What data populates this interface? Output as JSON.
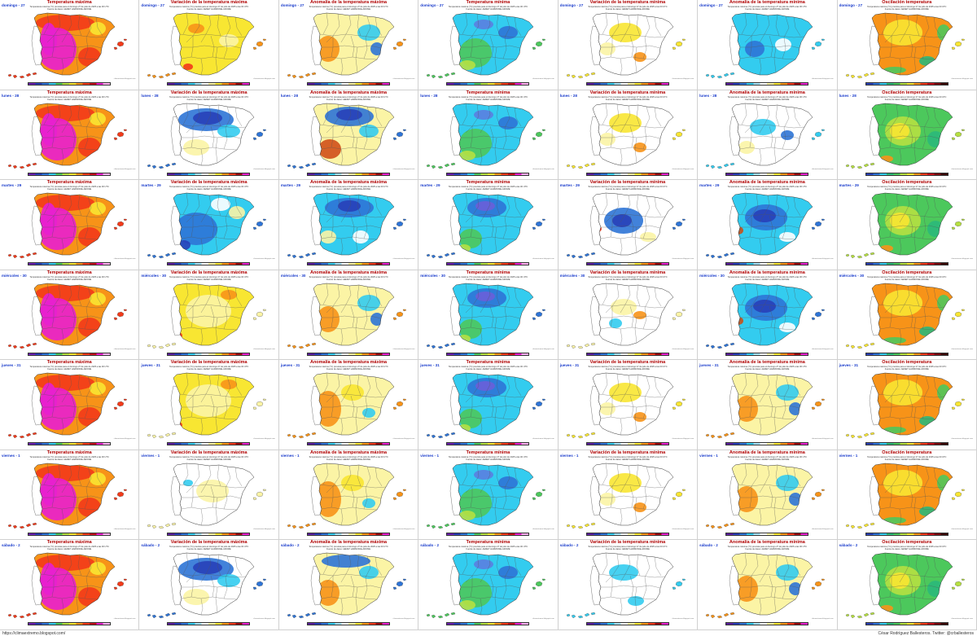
{
  "columns": [
    {
      "title": "Temperatura máxima",
      "palette": "tmax"
    },
    {
      "title": "Variación de la temperatura máxima",
      "palette": "var"
    },
    {
      "title": "Anomalía de la temperatura máxima",
      "palette": "anom"
    },
    {
      "title": "Temperatura mínima",
      "palette": "tmin"
    },
    {
      "title": "Variación de la temperatura mínima",
      "palette": "var"
    },
    {
      "title": "Anomalía de la temperatura mínima",
      "palette": "anom"
    },
    {
      "title": "Oscilación temperatura",
      "palette": "osc"
    }
  ],
  "days": [
    "domingo - 27",
    "lunes - 28",
    "martes - 29",
    "miércoles - 30",
    "jueves - 31",
    "viernes - 1",
    "sábado - 2"
  ],
  "footer": {
    "left": "https://climaextremo.blogspot.com/",
    "right": "César Rodríguez Ballesteros. Twitter: @crballesteros"
  },
  "cell_text": {
    "sub1": "Temperatura máxima (°C) prevista para el domingo 27 de julio de 2025 a las 00 UTC",
    "sub2": "Fuente de datos: AEMET HARMONIE-AROME",
    "credit": "climaextremo.blogspot.com"
  },
  "colors": {
    "title": "#b00000",
    "day": "#1a3ccc",
    "magenta": "#e81fd0",
    "red": "#f23a1a",
    "orange": "#f79318",
    "yellow": "#f8e632",
    "pale_yellow": "#fbf4a5",
    "white": "#ffffff",
    "cyan": "#33ccef",
    "blue": "#2e74d6",
    "navy": "#2840b8",
    "green": "#4cc85c",
    "lime": "#b6e041"
  },
  "fields": [
    [
      "tmax_hot",
      "var_mild_warm",
      "anom_mixed",
      "tmin_mixed",
      "var_warm_spots",
      "anom_cool",
      "osc_orange"
    ],
    [
      "tmax_hot",
      "var_cold_north",
      "anom_cold_north_warm_sw",
      "tmin_mixed",
      "var_warm_spots",
      "anom_cool_spots",
      "osc_green"
    ],
    [
      "tmax_hot",
      "var_cold_west",
      "anom_cold_north",
      "tmin_cool",
      "var_cold",
      "anom_cold",
      "osc_green"
    ],
    [
      "tmax_hot",
      "var_warm",
      "anom_mixed",
      "tmin_cool",
      "var_mixed",
      "anom_cold",
      "osc_orange"
    ],
    [
      "tmax_hot",
      "var_warm",
      "anom_warm",
      "tmin_cool",
      "var_warm_spots",
      "anom_mixed",
      "osc_orange"
    ],
    [
      "tmax_hot",
      "var_neutral",
      "anom_warm",
      "tmin_mixed",
      "var_warm_spots",
      "anom_mixed",
      "osc_orange"
    ],
    [
      "tmax_hot",
      "var_cold_north",
      "anom_warm_cold_north",
      "tmin_mixed",
      "var_cool",
      "anom_mixed",
      "osc_green"
    ]
  ]
}
